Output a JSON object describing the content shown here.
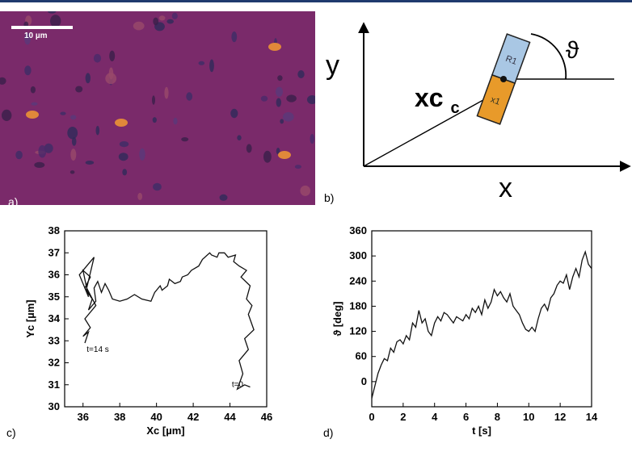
{
  "panels": {
    "a": {
      "label": "a)",
      "scalebar": "10 µm"
    },
    "b": {
      "label": "b)",
      "x_axis": "x",
      "y_axis": "y",
      "xc": "xc",
      "xc_sub": "c",
      "theta": "ϑ",
      "bead_upper": "R1",
      "bead_lower": "x1"
    },
    "c": {
      "label": "c)"
    },
    "d": {
      "label": "d)"
    }
  },
  "chart_data": [
    {
      "type": "line",
      "title": "",
      "xlabel": "Xc [µm]",
      "ylabel": "Yc [µm]",
      "xlim": [
        35,
        46
      ],
      "ylim": [
        30,
        38
      ],
      "xticks": [
        36,
        38,
        40,
        42,
        44,
        46
      ],
      "yticks": [
        30,
        31,
        32,
        33,
        34,
        35,
        36,
        37,
        38
      ],
      "annotations": [
        {
          "text": "t=14 s",
          "x": 36.2,
          "y": 32.5
        },
        {
          "text": "t=0",
          "x": 44.1,
          "y": 30.9
        }
      ],
      "series": [
        {
          "x": [
            45.1,
            44.8,
            44.4,
            44.7,
            44.5,
            45.0,
            44.8,
            45.3,
            45.0,
            45.2,
            44.9,
            45.1,
            44.6,
            44.9,
            44.5,
            44.2,
            44.3,
            43.9,
            43.7,
            43.4,
            43.3,
            43.0,
            42.9,
            42.5,
            42.3,
            41.9,
            41.7,
            41.4,
            41.3,
            41.0,
            40.7,
            40.6,
            40.3,
            40.2,
            39.9,
            39.8,
            39.7,
            39.2,
            38.8,
            38.4,
            38.0,
            37.6,
            37.4,
            37.2,
            37.0,
            36.8,
            36.6,
            36.7,
            36.3,
            36.5,
            36.1,
            36.4,
            36.0,
            36.3,
            35.8,
            36.2,
            36.6,
            36.2,
            36.7,
            36.1,
            36.4,
            36.0,
            36.3,
            36.1
          ],
          "y": [
            30.9,
            31.0,
            30.8,
            31.5,
            32.1,
            32.6,
            33.1,
            33.5,
            34.2,
            34.6,
            34.9,
            35.5,
            35.9,
            36.2,
            36.4,
            36.6,
            36.9,
            36.8,
            37.0,
            37.0,
            36.8,
            36.9,
            37.0,
            36.7,
            36.4,
            36.2,
            36.0,
            35.9,
            35.7,
            35.6,
            35.8,
            35.5,
            35.3,
            35.5,
            35.2,
            35.0,
            34.8,
            34.9,
            35.1,
            34.9,
            34.8,
            34.9,
            35.3,
            35.6,
            35.2,
            35.7,
            35.4,
            34.8,
            34.4,
            34.9,
            35.4,
            35.9,
            36.2,
            35.0,
            36.0,
            36.4,
            36.8,
            35.4,
            34.6,
            34.0,
            33.6,
            33.2,
            33.4,
            32.9
          ]
        }
      ]
    },
    {
      "type": "line",
      "title": "",
      "xlabel": "t [s]",
      "ylabel": "ϑ [deg]",
      "xlim": [
        0,
        14
      ],
      "ylim": [
        -60,
        360
      ],
      "xticks": [
        0,
        2,
        4,
        6,
        8,
        10,
        12,
        14
      ],
      "yticks": [
        0,
        60,
        120,
        180,
        240,
        300,
        360
      ],
      "series": [
        {
          "x": [
            0,
            0.2,
            0.4,
            0.6,
            0.8,
            1.0,
            1.2,
            1.4,
            1.6,
            1.8,
            2.0,
            2.2,
            2.4,
            2.6,
            2.8,
            3.0,
            3.2,
            3.4,
            3.6,
            3.8,
            4.0,
            4.2,
            4.4,
            4.6,
            4.8,
            5.0,
            5.2,
            5.4,
            5.6,
            5.8,
            6.0,
            6.2,
            6.4,
            6.6,
            6.8,
            7.0,
            7.2,
            7.4,
            7.6,
            7.8,
            8.0,
            8.2,
            8.4,
            8.6,
            8.8,
            9.0,
            9.2,
            9.4,
            9.6,
            9.8,
            10.0,
            10.2,
            10.4,
            10.6,
            10.8,
            11.0,
            11.2,
            11.4,
            11.6,
            11.8,
            12.0,
            12.2,
            12.4,
            12.6,
            12.8,
            13.0,
            13.2,
            13.4,
            13.6,
            13.8,
            14.0
          ],
          "y": [
            -40,
            -10,
            20,
            40,
            55,
            50,
            80,
            70,
            95,
            100,
            90,
            110,
            100,
            140,
            130,
            170,
            140,
            150,
            120,
            110,
            140,
            155,
            145,
            165,
            160,
            150,
            140,
            155,
            150,
            145,
            160,
            150,
            175,
            165,
            180,
            160,
            195,
            175,
            190,
            220,
            205,
            215,
            200,
            190,
            210,
            180,
            170,
            160,
            140,
            125,
            120,
            130,
            120,
            150,
            175,
            185,
            170,
            200,
            210,
            230,
            240,
            235,
            255,
            220,
            250,
            270,
            250,
            290,
            310,
            280,
            270
          ]
        }
      ]
    }
  ]
}
